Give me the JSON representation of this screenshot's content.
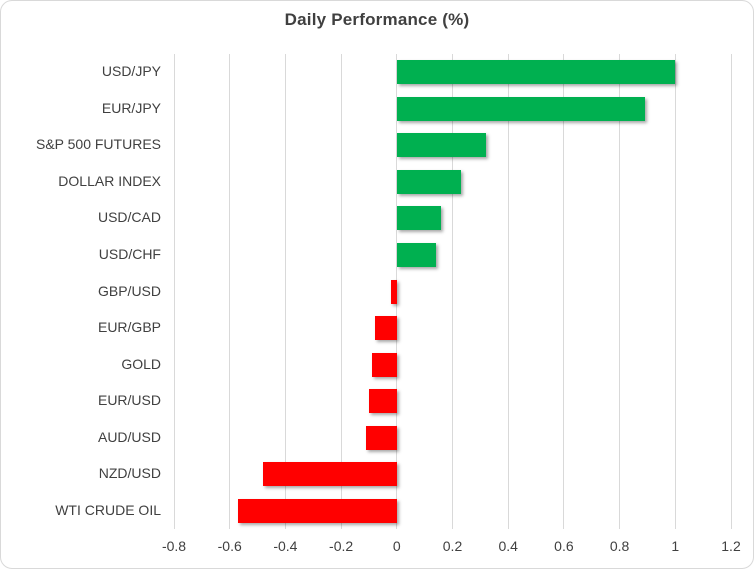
{
  "chart": {
    "title": "Daily Performance (%)"
  },
  "chart_data": {
    "type": "bar",
    "orientation": "horizontal",
    "title": "Daily Performance (%)",
    "categories": [
      "USD/JPY",
      "EUR/JPY",
      "S&P 500 FUTURES",
      "DOLLAR INDEX",
      "USD/CAD",
      "USD/CHF",
      "GBP/USD",
      "EUR/GBP",
      "GOLD",
      "EUR/USD",
      "AUD/USD",
      "NZD/USD",
      "WTI CRUDE OIL"
    ],
    "values": [
      1.0,
      0.89,
      0.32,
      0.23,
      0.16,
      0.14,
      -0.02,
      -0.08,
      -0.09,
      -0.1,
      -0.11,
      -0.48,
      -0.57
    ],
    "xlabel": "",
    "ylabel": "",
    "xlim": [
      -0.8,
      1.2
    ],
    "xticks": [
      -0.8,
      -0.6,
      -0.4,
      -0.2,
      0,
      0.2,
      0.4,
      0.6,
      0.8,
      1,
      1.2
    ],
    "xtick_labels": [
      "-0.8",
      "-0.6",
      "-0.4",
      "-0.2",
      "0",
      "0.2",
      "0.4",
      "0.6",
      "0.8",
      "1",
      "1.2"
    ],
    "grid": true,
    "legend": false,
    "colors": {
      "positive": "#00B050",
      "negative": "#FF0000"
    }
  }
}
